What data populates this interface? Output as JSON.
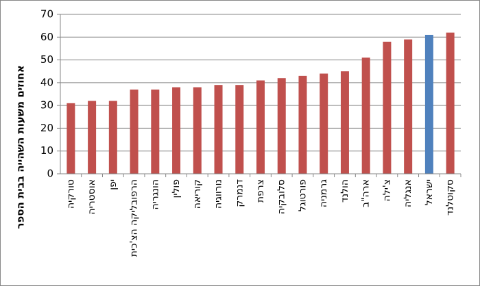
{
  "chart_data": {
    "type": "bar",
    "y_label": "אחוזים משעות השהייה בבית הספר",
    "categories": [
      "טורקיה",
      "אוסטריה",
      "יפן",
      "הרפובליקה הצ'כית",
      "הונגריה",
      "פולין",
      "קוריאה",
      "נורווגיה",
      "דנמרק",
      "צרפת",
      "סלובקיה",
      "פורטוגל",
      "גרמניה",
      "הולנד",
      "ארה\"ב",
      "צ'ילה",
      "אנגליה",
      "ישראל",
      "סקוטלנד"
    ],
    "values": [
      31,
      32,
      32,
      37,
      37,
      38,
      38,
      39,
      39,
      41,
      42,
      43,
      44,
      45,
      51,
      58,
      59,
      61,
      62
    ],
    "colors": [
      "#c0504d",
      "#c0504d",
      "#c0504d",
      "#c0504d",
      "#c0504d",
      "#c0504d",
      "#c0504d",
      "#c0504d",
      "#c0504d",
      "#c0504d",
      "#c0504d",
      "#c0504d",
      "#c0504d",
      "#c0504d",
      "#c0504d",
      "#c0504d",
      "#c0504d",
      "#4f81bd",
      "#c0504d"
    ],
    "ylim": [
      0,
      70
    ],
    "yticks": [
      0,
      10,
      20,
      30,
      40,
      50,
      60,
      70
    ],
    "grid": true
  }
}
